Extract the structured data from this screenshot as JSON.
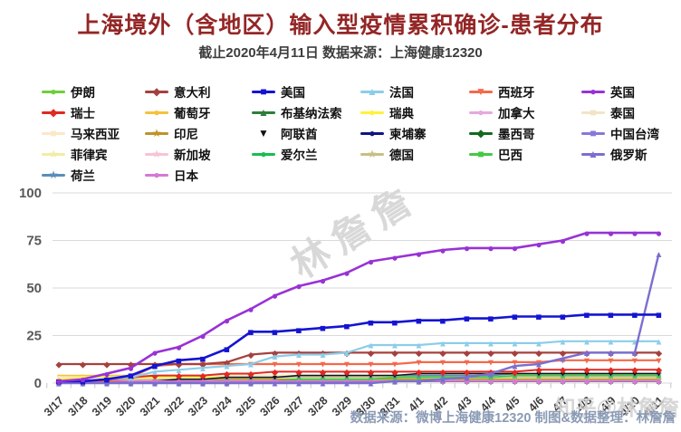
{
  "header": {
    "title": "上海境外（含地区）输入型疫情累积确诊-患者分布",
    "subtitle": "截止2020年4月11日 数据来源：上海健康12320"
  },
  "watermarks": {
    "plot": "林詹詹",
    "corner": "知乎@林詹詹"
  },
  "footer": {
    "text": "数据来源：微博上海健康12320 制图&数据整理：林詹詹"
  },
  "legend_order": [
    "伊朗",
    "意大利",
    "美国",
    "法国",
    "西班牙",
    "英国",
    "瑞士",
    "葡萄牙",
    "布基纳法索",
    "瑞典",
    "加拿大",
    "泰国",
    "马来西亚",
    "印尼",
    "阿联酋",
    "柬埔寨",
    "墨西哥",
    "中国台湾",
    "菲律宾",
    "新加坡",
    "爱尔兰",
    "德国",
    "巴西",
    "俄罗斯",
    "荷兰",
    "日本"
  ],
  "chart_data": {
    "type": "line",
    "title": "上海境外（含地区）输入型疫情累积确诊-患者分布",
    "xlabel": "",
    "ylabel": "",
    "ylim": [
      0,
      100
    ],
    "yticks": [
      0,
      25,
      50,
      75,
      100
    ],
    "grid": true,
    "legend_position": "top",
    "x": [
      "3/17",
      "3/18",
      "3/19",
      "3/20",
      "3/21",
      "3/22",
      "3/23",
      "3/24",
      "3/25",
      "3/26",
      "3/27",
      "3/28",
      "3/29",
      "3/30",
      "3/31",
      "4/1",
      "4/2",
      "4/3",
      "4/4",
      "4/5",
      "4/6",
      "4/7",
      "4/8",
      "4/9",
      "4/10",
      "4/11"
    ],
    "series": [
      {
        "name": "伊朗",
        "color": "#70CE3B",
        "marker": "circle",
        "lw": 1.6,
        "ms": 9,
        "values": [
          3,
          3,
          3,
          3,
          3,
          3,
          3,
          3,
          3,
          3,
          3,
          3,
          3,
          3,
          3,
          3,
          3,
          3,
          3,
          3,
          3,
          3,
          3,
          3,
          3,
          3
        ]
      },
      {
        "name": "葡萄牙",
        "color": "#F5C23C",
        "marker": "circle",
        "lw": 1.6,
        "ms": 9,
        "values": [
          4,
          4,
          4,
          4,
          4,
          4,
          4,
          4,
          4,
          4,
          4,
          4,
          4,
          4,
          4,
          4,
          4,
          4,
          4,
          4,
          4,
          4,
          4,
          4,
          4,
          4
        ]
      },
      {
        "name": "马来西亚",
        "color": "#FBE8C8",
        "marker": "square",
        "lw": 1.6,
        "ms": 9,
        "values": [
          3,
          3,
          3,
          4,
          4,
          4,
          4,
          4,
          4,
          4,
          4,
          4,
          4,
          4,
          4,
          4,
          4,
          4,
          4,
          4,
          4,
          4,
          4,
          4,
          4,
          4
        ]
      },
      {
        "name": "菲律宾",
        "color": "#F2ECA4",
        "marker": "star",
        "lw": 1.6,
        "ms": 9,
        "values": [
          1,
          1,
          2,
          2,
          2,
          2,
          2,
          2,
          2,
          2,
          2,
          2,
          2,
          2,
          2,
          3,
          3,
          3,
          3,
          3,
          3,
          3,
          3,
          3,
          3,
          3
        ]
      },
      {
        "name": "瑞典",
        "color": "#FFF23B",
        "marker": "circle",
        "lw": 1.6,
        "ms": 9,
        "values": [
          2,
          3,
          3,
          3,
          3,
          3,
          3,
          3,
          3,
          3,
          3,
          3,
          3,
          3,
          3,
          3,
          3,
          3,
          3,
          3,
          3,
          3,
          3,
          3,
          3,
          3
        ]
      },
      {
        "name": "泰国",
        "color": "#EFE5C5",
        "marker": "square",
        "lw": 1.6,
        "ms": 9,
        "values": [
          0,
          0,
          0,
          1,
          2,
          2,
          2,
          2,
          2,
          2,
          2,
          2,
          2,
          2,
          2,
          2,
          2,
          2,
          2,
          2,
          2,
          2,
          2,
          2,
          2,
          2
        ]
      },
      {
        "name": "中国台湾",
        "color": "#8878D8",
        "marker": "square",
        "lw": 1.6,
        "ms": 9,
        "values": [
          0,
          0,
          0,
          0,
          0,
          1,
          1,
          1,
          1,
          1,
          2,
          2,
          2,
          2,
          2,
          2,
          2,
          2,
          2,
          2,
          2,
          2,
          2,
          2,
          2,
          2
        ]
      },
      {
        "name": "加拿大",
        "color": "#E5A8E0",
        "marker": "circle",
        "lw": 1.6,
        "ms": 9,
        "values": [
          0,
          0,
          1,
          1,
          1,
          2,
          2,
          2,
          2,
          2,
          2,
          2,
          2,
          2,
          2,
          2,
          2,
          2,
          2,
          2,
          2,
          2,
          2,
          2,
          2,
          2
        ]
      },
      {
        "name": "新加坡",
        "color": "#F8C3D6",
        "marker": "star",
        "lw": 1.6,
        "ms": 9,
        "values": [
          0,
          0,
          1,
          1,
          1,
          1,
          1,
          2,
          2,
          2,
          2,
          2,
          2,
          2,
          2,
          2,
          2,
          2,
          2,
          2,
          2,
          2,
          2,
          2,
          2,
          2
        ]
      },
      {
        "name": "印尼",
        "color": "#C09327",
        "marker": "star",
        "lw": 1.6,
        "ms": 9,
        "values": [
          0,
          0,
          0,
          0,
          1,
          1,
          1,
          2,
          2,
          2,
          2,
          2,
          2,
          2,
          2,
          2,
          2,
          2,
          2,
          2,
          2,
          2,
          2,
          2,
          2,
          2
        ]
      },
      {
        "name": "德国",
        "color": "#C9BE85",
        "marker": "star",
        "lw": 1.6,
        "ms": 9,
        "values": [
          1,
          1,
          1,
          2,
          2,
          2,
          2,
          3,
          3,
          3,
          3,
          3,
          3,
          3,
          3,
          3,
          3,
          3,
          3,
          3,
          3,
          3,
          3,
          3,
          3,
          3
        ]
      },
      {
        "name": "布基纳法索",
        "color": "#2E7D3A",
        "marker": "tri",
        "lw": 1.6,
        "ms": 8.5,
        "values": [
          0,
          0,
          0,
          1,
          1,
          1,
          1,
          1,
          1,
          1,
          1,
          1,
          1,
          1,
          1,
          1,
          1,
          1,
          1,
          1,
          1,
          1,
          1,
          1,
          1,
          1
        ]
      },
      {
        "name": "爱尔兰",
        "color": "#17BF4F",
        "marker": "circle",
        "lw": 1.6,
        "ms": 9,
        "values": [
          0,
          0,
          0,
          0,
          0,
          0,
          0,
          0,
          1,
          1,
          1,
          1,
          1,
          1,
          1,
          1,
          1,
          1,
          1,
          1,
          1,
          1,
          1,
          1,
          1,
          1
        ]
      },
      {
        "name": "墨西哥",
        "color": "#14691F",
        "marker": "diamond",
        "lw": 1.6,
        "ms": 8.5,
        "values": [
          0,
          0,
          0,
          0,
          0,
          0,
          0,
          0,
          0,
          1,
          1,
          1,
          1,
          1,
          1,
          1,
          1,
          1,
          1,
          1,
          1,
          1,
          1,
          1,
          1,
          1
        ]
      },
      {
        "name": "柬埔寨",
        "color": "#0F1580",
        "marker": "circle",
        "lw": 1.6,
        "ms": 9,
        "values": [
          0,
          0,
          1,
          1,
          1,
          1,
          1,
          1,
          1,
          1,
          1,
          1,
          1,
          1,
          1,
          1,
          1,
          1,
          1,
          1,
          1,
          1,
          1,
          1,
          1,
          1
        ]
      },
      {
        "name": "巴西",
        "color": "#43C943",
        "marker": "square",
        "lw": 1.8,
        "ms": 9,
        "values": [
          0,
          0,
          0,
          0,
          0,
          0,
          0,
          1,
          1,
          1,
          2,
          2,
          2,
          2,
          3,
          3,
          3,
          3,
          3,
          4,
          4,
          4,
          4,
          4,
          4,
          4
        ]
      },
      {
        "name": "荷兰",
        "color": "#5B8DB8",
        "marker": "star",
        "lw": 1.8,
        "ms": 9.5,
        "values": [
          0,
          0,
          0,
          1,
          1,
          2,
          2,
          3,
          3,
          3,
          4,
          4,
          4,
          4,
          4,
          4,
          4,
          4,
          4,
          5,
          5,
          5,
          5,
          5,
          5,
          5
        ]
      },
      {
        "name": "阿联酋",
        "color": "#111111",
        "marker": "tridown",
        "lw": 1.4,
        "ms": 8,
        "values": [
          0,
          0,
          0,
          1,
          1,
          2,
          2,
          3,
          3,
          3,
          4,
          4,
          4,
          4,
          4,
          5,
          5,
          5,
          5,
          5,
          5,
          5,
          5,
          5,
          5,
          5
        ]
      },
      {
        "name": "日本",
        "color": "#D678D6",
        "marker": "circle",
        "lw": 1.8,
        "ms": 12,
        "values": [
          1,
          1,
          1,
          1,
          1,
          1,
          1,
          1,
          1,
          1,
          1,
          1,
          1,
          1,
          1,
          1,
          1,
          1,
          1,
          1,
          1,
          1,
          1,
          1,
          1,
          1
        ]
      },
      {
        "name": "瑞士",
        "color": "#E02A22",
        "marker": "diamond",
        "lw": 2.0,
        "ms": 9.5,
        "values": [
          1,
          1,
          2,
          3,
          4,
          4,
          4,
          5,
          5,
          6,
          6,
          6,
          6,
          6,
          6,
          6,
          6,
          6,
          6,
          6,
          7,
          7,
          7,
          7,
          7,
          7
        ]
      },
      {
        "name": "西班牙",
        "color": "#F4694B",
        "marker": "tridown",
        "lw": 2.2,
        "ms": 10,
        "values": [
          1,
          1,
          1,
          3,
          9,
          10,
          10,
          10,
          10,
          10,
          10,
          10,
          10,
          10,
          10,
          11,
          11,
          11,
          11,
          11,
          11,
          12,
          12,
          12,
          12,
          12
        ]
      },
      {
        "name": "意大利",
        "color": "#A5413E",
        "marker": "diamond",
        "lw": 2.2,
        "ms": 9.5,
        "values": [
          10,
          10,
          10,
          10,
          10,
          10,
          10,
          11,
          15,
          16,
          16,
          16,
          16,
          16,
          16,
          16,
          16,
          16,
          16,
          16,
          16,
          16,
          16,
          16,
          16,
          16
        ]
      },
      {
        "name": "法国",
        "color": "#8CCDE8",
        "marker": "tri",
        "lw": 2.2,
        "ms": 10,
        "values": [
          0,
          1,
          2,
          3,
          6,
          7,
          8,
          9,
          10,
          14,
          15,
          15,
          16,
          20,
          20,
          20,
          21,
          21,
          21,
          21,
          21,
          22,
          22,
          22,
          22,
          22
        ]
      },
      {
        "name": "俄罗斯",
        "color": "#7A6FD0",
        "marker": "tri",
        "lw": 2.4,
        "ms": 10,
        "values": [
          0,
          0,
          0,
          0,
          0,
          0,
          0,
          0,
          0,
          0,
          0,
          0,
          0,
          0,
          1,
          1,
          2,
          3,
          5,
          9,
          10,
          13,
          16,
          16,
          16,
          68
        ]
      },
      {
        "name": "美国",
        "color": "#1414D2",
        "marker": "square",
        "lw": 2.6,
        "ms": 11.5,
        "values": [
          1,
          1,
          2,
          4,
          9,
          12,
          13,
          18,
          27,
          27,
          28,
          29,
          30,
          32,
          32,
          33,
          33,
          34,
          34,
          35,
          35,
          35,
          36,
          36,
          36,
          36
        ]
      },
      {
        "name": "英国",
        "color": "#9832D6",
        "marker": "circle",
        "lw": 2.6,
        "ms": 12,
        "values": [
          1,
          2,
          5,
          8,
          16,
          19,
          25,
          33,
          39,
          46,
          51,
          54,
          58,
          64,
          66,
          68,
          70,
          71,
          71,
          71,
          73,
          75,
          79,
          79,
          79,
          79
        ]
      }
    ]
  }
}
